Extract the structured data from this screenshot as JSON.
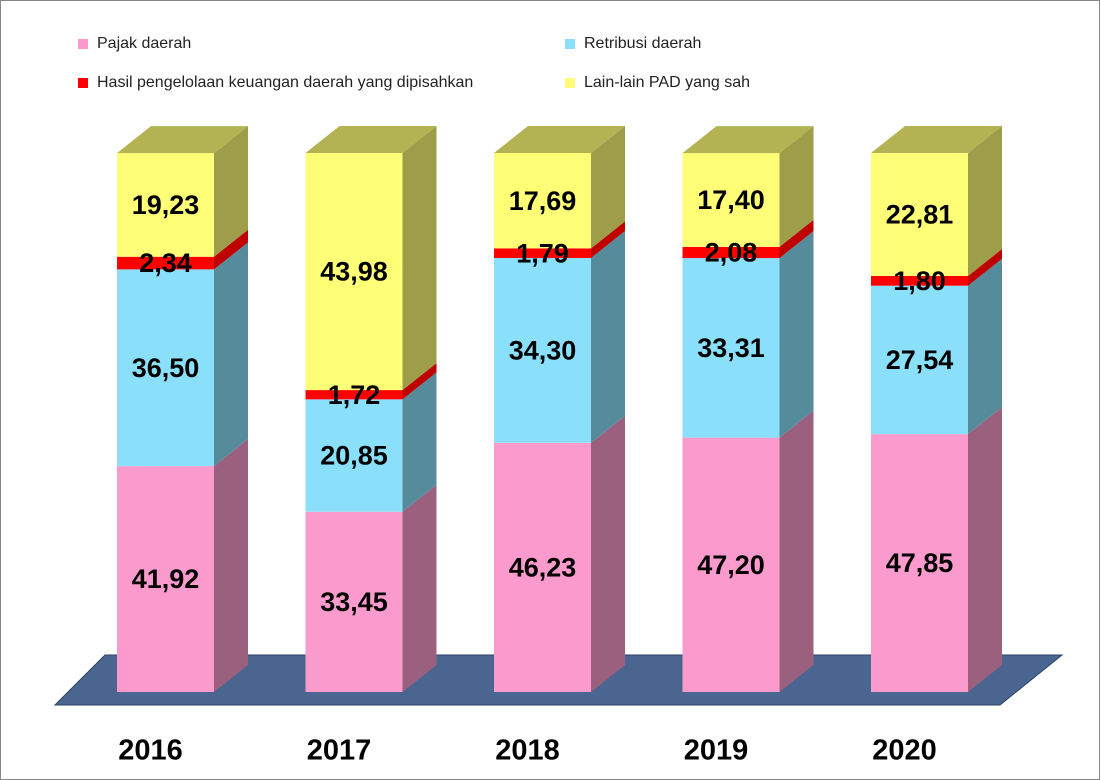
{
  "chart_data": {
    "type": "stacked-bar-3d",
    "categories": [
      "2016",
      "2017",
      "2018",
      "2019",
      "2020"
    ],
    "series": [
      {
        "name": "Pajak daerah",
        "color": "#fb9bcd",
        "values": [
          41.92,
          33.45,
          46.23,
          47.2,
          47.85
        ],
        "value_labels": [
          "41,92",
          "33,45",
          "46,23",
          "47,20",
          "47,85"
        ]
      },
      {
        "name": "Retribusi daerah",
        "color": "#8ae0fb",
        "values": [
          36.5,
          20.85,
          34.3,
          33.31,
          27.54
        ],
        "value_labels": [
          "36,50",
          "20,85",
          "34,30",
          "33,31",
          "27,54"
        ]
      },
      {
        "name": "Hasil pengelolaan keuangan daerah yang dipisahkan",
        "color": "#ff0000",
        "values": [
          2.34,
          1.72,
          1.79,
          2.08,
          1.8
        ],
        "value_labels": [
          "2,34",
          "1,72",
          "1,79",
          "2,08",
          "1,80"
        ]
      },
      {
        "name": "Lain-lain PAD yang sah",
        "color": "#ffff77",
        "values": [
          19.23,
          43.98,
          17.69,
          17.4,
          22.81
        ],
        "value_labels": [
          "19,23",
          "43,98",
          "17,69",
          "17,40",
          "22,81"
        ]
      }
    ]
  }
}
